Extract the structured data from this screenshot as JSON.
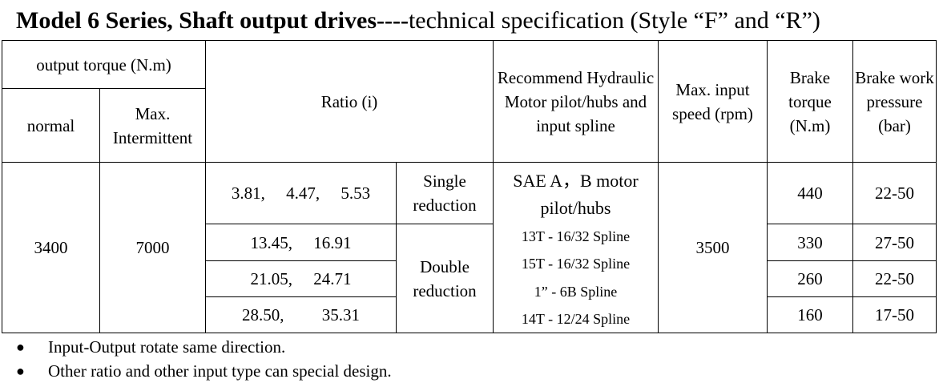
{
  "title": {
    "bold": "Model 6 Series, Shaft output drives----",
    "normal": "technical specification (Style “F” and “R”)"
  },
  "headers": {
    "output_torque": "output torque (N.m)",
    "normal": "normal",
    "max_intermittent": "Max. Intermittent",
    "ratio": "Ratio (i)",
    "recommend_motor": "Recommend Hydraulic Motor pilot/hubs and input spline",
    "max_input_speed": "Max. input speed (rpm)",
    "brake_torque": "Brake torque (N.m)",
    "brake_pressure": "Brake work pressure (bar)"
  },
  "data": {
    "normal_torque": "3400",
    "max_torque": "7000",
    "max_speed": "3500",
    "single_label": "Single reduction",
    "double_label": "Double reduction",
    "rows": [
      {
        "ratios": "3.81,  4.47,  5.53",
        "brake_torque": "440",
        "pressure": "22-50"
      },
      {
        "ratios": "13.45,  16.91",
        "brake_torque": "330",
        "pressure": "27-50"
      },
      {
        "ratios": "21.05,  24.71",
        "brake_torque": "260",
        "pressure": "22-50"
      },
      {
        "ratios": "28.50,   35.31",
        "brake_torque": "160",
        "pressure": "17-50"
      }
    ],
    "motor_header": "SAE A，B motor pilot/hubs",
    "splines": [
      "13T - 16/32 Spline",
      "15T - 16/32 Spline",
      "1” - 6B Spline",
      "14T - 12/24 Spline"
    ]
  },
  "notes": [
    "Input-Output rotate same direction.",
    "Other ratio and other input type can special design."
  ],
  "bullet_glyph": "●"
}
